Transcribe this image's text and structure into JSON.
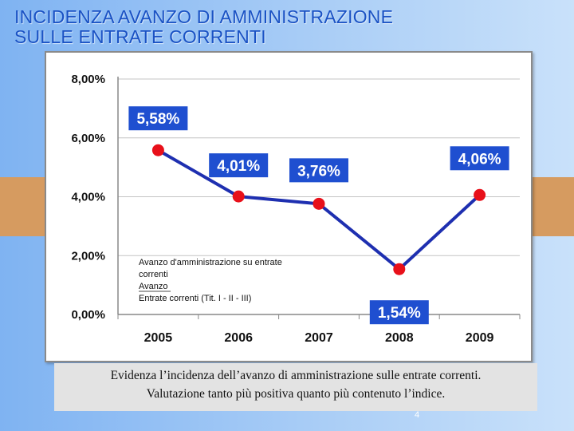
{
  "slide": {
    "title_line1": "INCIDENZA AVANZO DI AMMINISTRAZIONE",
    "title_line2": "SULLE ENTRATE CORRENTI",
    "caption_line1": "Evidenza l’incidenza dell’avanzo di amministrazione sulle entrate correnti.",
    "caption_line2": "Valutazione tanto più positiva quanto più contenuto l’indice.",
    "page_number": "4"
  },
  "colors": {
    "line": "#1e2fb0",
    "marker": "#e8101a",
    "label_bg": "#1f4fd0",
    "label_text": "#ffffff"
  },
  "chart_data": {
    "type": "line",
    "categories": [
      "2005",
      "2006",
      "2007",
      "2008",
      "2009"
    ],
    "values": [
      5.58,
      4.01,
      3.76,
      1.54,
      4.06
    ],
    "data_labels": [
      "5,58%",
      "4,01%",
      "3,76%",
      "1,54%",
      "4,06%"
    ],
    "ylim": [
      0,
      8
    ],
    "yticks": [
      0,
      2,
      4,
      6,
      8
    ],
    "ytick_labels": [
      "0,00%",
      "2,00%",
      "4,00%",
      "6,00%",
      "8,00%"
    ],
    "legend": {
      "title_line1": "Avanzo d'amministrazione su entrate",
      "title_line2": "correnti",
      "numerator": "Avanzo",
      "denominator": "Entrate correnti (Tit. I - II - III)",
      "placement": "bottom-left"
    },
    "grid": true
  }
}
